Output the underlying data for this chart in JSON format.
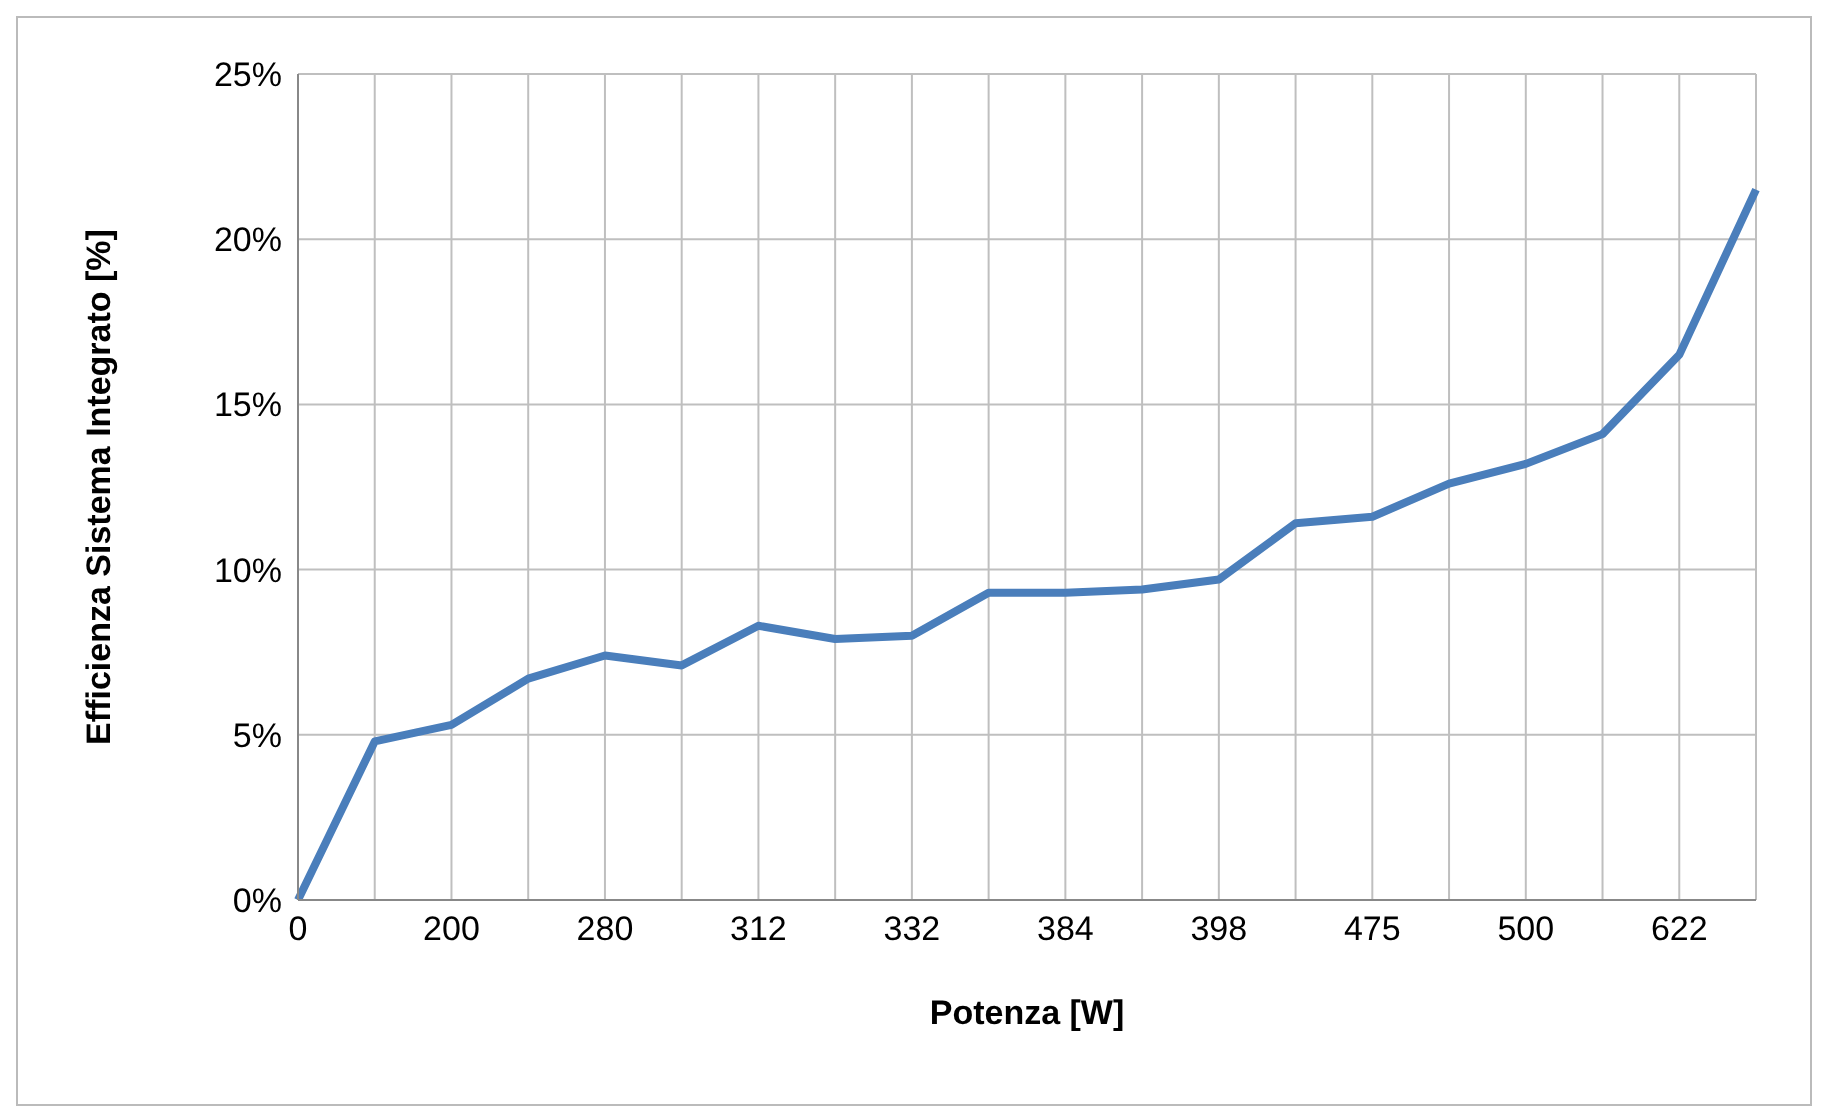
{
  "chart_data": {
    "type": "line",
    "xlabel": "Potenza [W]",
    "ylabel": "Efficienza Sistema Integrato [%]",
    "categories": [
      "0",
      null,
      "200",
      null,
      "280",
      null,
      "312",
      null,
      "332",
      null,
      "384",
      null,
      "398",
      null,
      "475",
      null,
      "500",
      null,
      "622",
      null
    ],
    "series": [
      {
        "color": "#4a7ebb",
        "values": [
          0,
          4.8,
          5.3,
          6.7,
          7.4,
          7.1,
          8.3,
          7.9,
          8.0,
          9.3,
          9.3,
          9.4,
          9.7,
          11.4,
          11.6,
          12.6,
          13.2,
          14.1,
          16.5,
          21.5
        ]
      }
    ],
    "ylim": [
      0,
      25
    ],
    "yticks": [
      {
        "value": 0,
        "label": "0%"
      },
      {
        "value": 5,
        "label": "5%"
      },
      {
        "value": 10,
        "label": "10%"
      },
      {
        "value": 15,
        "label": "15%"
      },
      {
        "value": 20,
        "label": "20%"
      },
      {
        "value": 25,
        "label": "25%"
      }
    ],
    "grid": true,
    "marker": "none",
    "line_style": "solid",
    "legend": false
  }
}
